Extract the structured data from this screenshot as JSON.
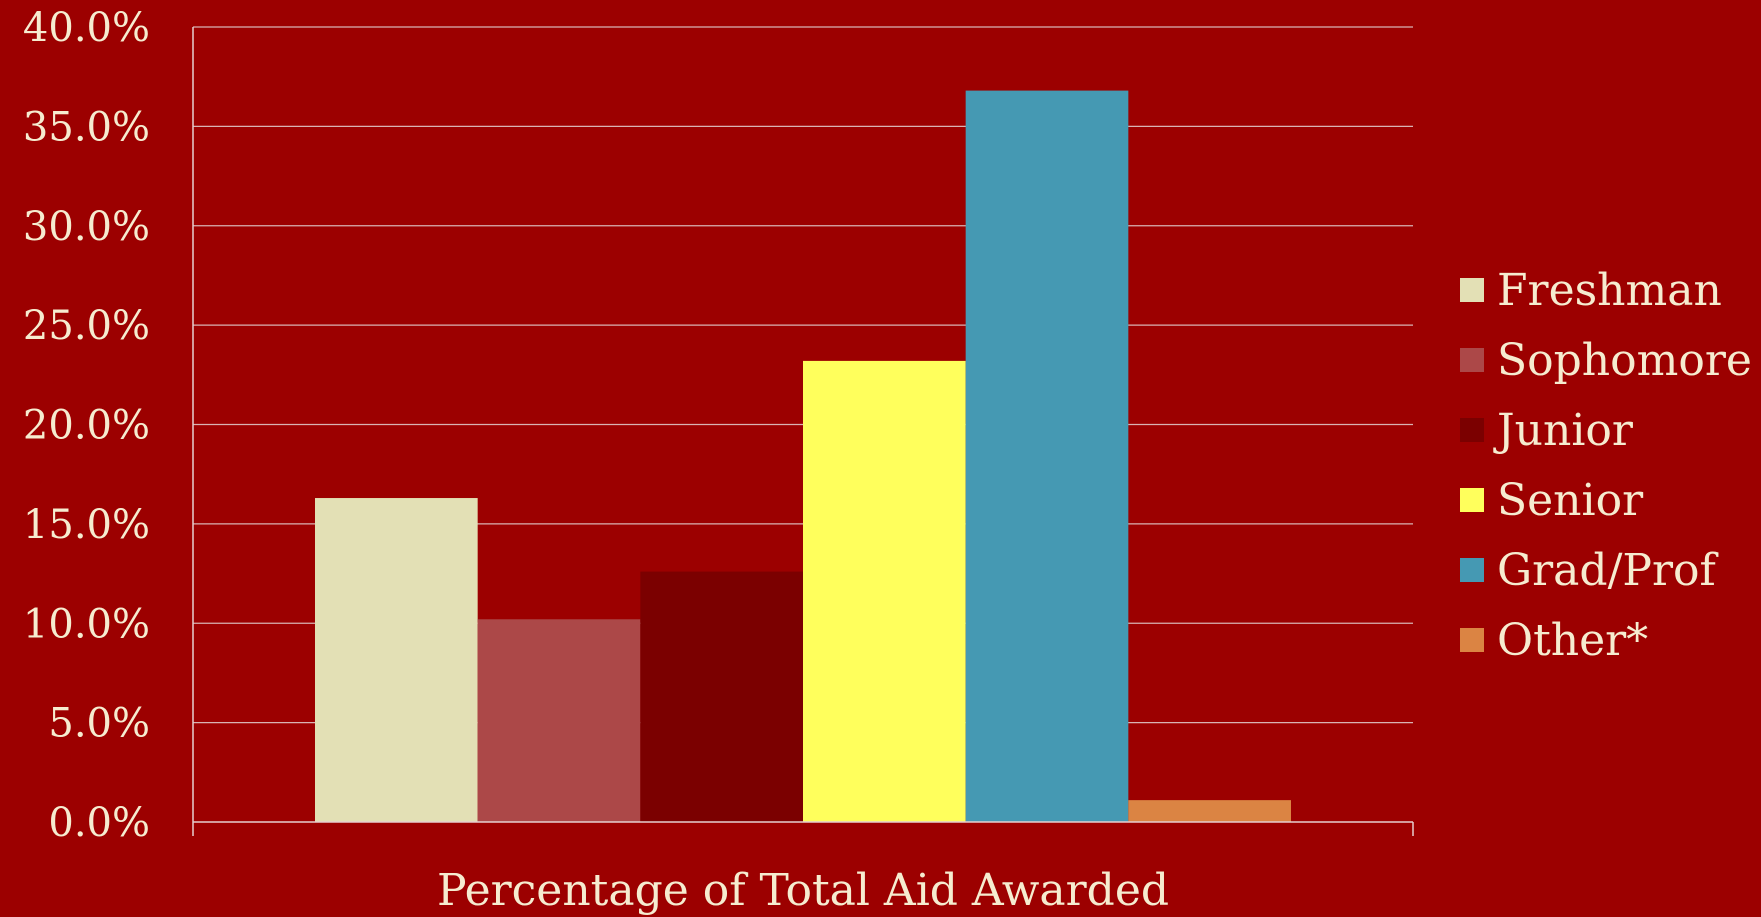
{
  "chart_data": {
    "type": "bar",
    "categories": [
      "Percentage of Total Aid Awarded"
    ],
    "series": [
      {
        "name": "Freshman",
        "values": [
          16.3
        ],
        "color": "#e3e0b5"
      },
      {
        "name": "Sophomore",
        "values": [
          10.2
        ],
        "color": "#ac4848"
      },
      {
        "name": "Junior",
        "values": [
          12.6
        ],
        "color": "#7b0000"
      },
      {
        "name": "Senior",
        "values": [
          23.2
        ],
        "color": "#ffff5c"
      },
      {
        "name": "Grad/Prof",
        "values": [
          36.8
        ],
        "color": "#4599b3"
      },
      {
        "name": "Other*",
        "values": [
          1.1
        ],
        "color": "#db8443"
      }
    ],
    "xlabel": "Percentage of Total Aid Awarded",
    "ylabel": "",
    "ylim": [
      0,
      40
    ],
    "yticks": [
      "0.0%",
      "5.0%",
      "10.0%",
      "15.0%",
      "20.0%",
      "25.0%",
      "30.0%",
      "35.0%",
      "40.0%"
    ],
    "grid": true,
    "legend_position": "right",
    "background_color": "#9c0000",
    "text_color": "#f6ecd0"
  }
}
